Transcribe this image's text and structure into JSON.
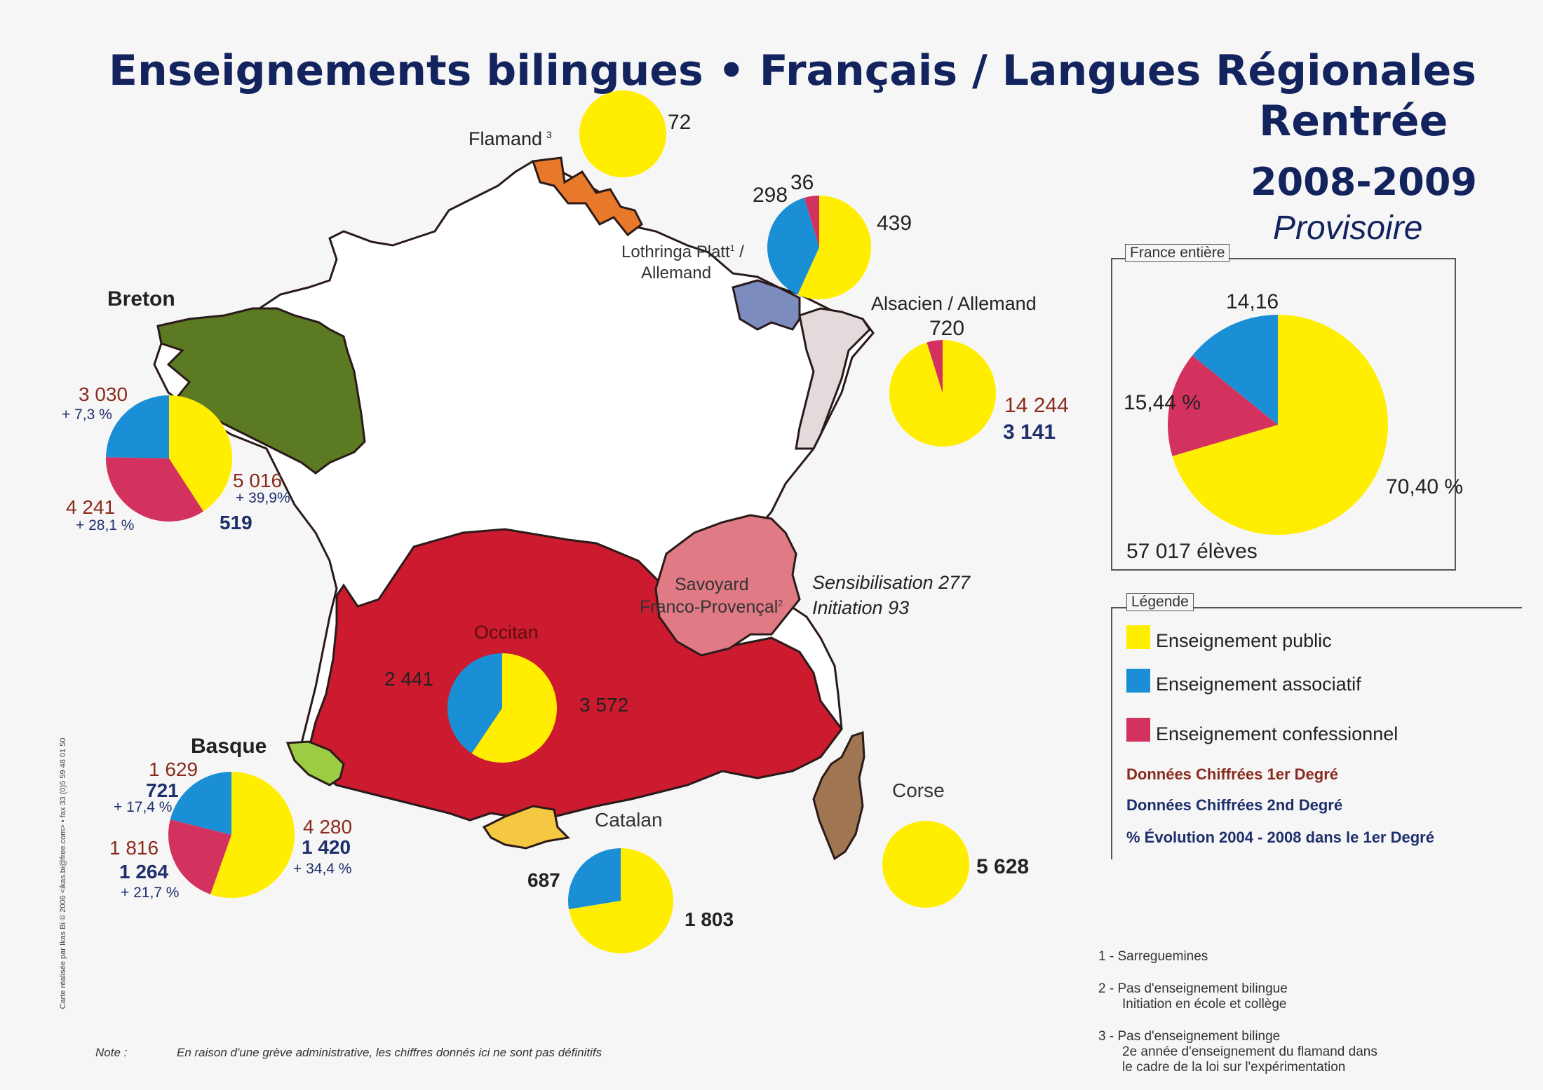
{
  "title": {
    "line1": "Enseignements bilingues • Français / Langues Régionales",
    "line2": "Rentrée",
    "year": "2008-2009",
    "status": "Provisoire"
  },
  "colors": {
    "public": "#ffee00",
    "associatif": "#1a8fd6",
    "confessionnel": "#d4325e",
    "breton_region": "#5c7a22",
    "occitan_region": "#cc1a2e",
    "savoyard_region": "#e07a84",
    "flamand_region": "#e8782a",
    "lothringen_region": "#7c8cbf",
    "alsace_region": "#e2dadb",
    "basque_region": "#9ccc44",
    "catalan_region": "#f5c842",
    "corse_region": "#a07552",
    "first_degree_text": "#8a2a1c",
    "second_degree_text": "#1e2f6b",
    "title_text": "#13235e"
  },
  "regions": {
    "flamand": {
      "name": "Flamand",
      "note": "3",
      "pie_public": "72"
    },
    "lothringen": {
      "name_line1": "Lothringa Platt",
      "note": "1",
      "name_line1_suffix": " /",
      "name_line2": "Allemand",
      "pie_public": "439",
      "pie_associatif": "298",
      "pie_confessionnel": "36"
    },
    "alsace": {
      "name": "Alsacien / Allemand",
      "pie_top": "720",
      "first_degree": "14 244",
      "second_degree": "3 141"
    },
    "breton": {
      "name": "Breton",
      "assoc_value": "3 030",
      "assoc_evol": "+ 7,3 %",
      "public_value": "5 016",
      "public_evol": "+ 39,9%",
      "public_second": "519",
      "confes_value": "4 241",
      "confes_evol": "+ 28,1 %"
    },
    "savoyard": {
      "name_line1": "Savoyard",
      "name_line2": "Franco-Provençal",
      "note": "2",
      "sensibilisation": "Sensibilisation 277",
      "initiation": "Initiation 93"
    },
    "occitan": {
      "name": "Occitan",
      "assoc_value": "2 441",
      "public_value": "3 572"
    },
    "basque": {
      "name": "Basque",
      "assoc_value": "1 629",
      "assoc_second": "721",
      "assoc_evol": "+ 17,4 %",
      "public_value": "4 280",
      "public_second": "1 420",
      "public_evol": "+ 34,4 %",
      "confes_value": "1 816",
      "confes_second": "1 264",
      "confes_evol": "+ 21,7 %"
    },
    "catalan": {
      "name": "Catalan",
      "assoc_value": "687",
      "public_value": "1 803"
    },
    "corse": {
      "name": "Corse",
      "public_value": "5 628"
    }
  },
  "france_entiere": {
    "label": "France entière",
    "assoc_pct": "14,16",
    "confes_pct": "15,44 %",
    "public_pct": "70,40 %",
    "total": "57 017 élèves"
  },
  "legend": {
    "label": "Légende",
    "public": "Enseignement public",
    "associatif": "Enseignement associatif",
    "confessionnel": "Enseignement confessionnel",
    "first_degree": "Données Chiffrées 1er Degré",
    "second_degree": "Données Chiffrées 2nd Degré",
    "evolution": "% Évolution 2004 - 2008 dans le 1er Degré"
  },
  "footnotes": {
    "n1": "1 - Sarreguemines",
    "n2_line1": "2 - Pas d'enseignement bilingue",
    "n2_line2": "Initiation en école et collège",
    "n3_line1": "3 - Pas d'enseignement bilinge",
    "n3_line2": "2e année d'enseignement du flamand dans",
    "n3_line3": "le cadre de la loi sur l'expérimentation"
  },
  "note": {
    "label": "Note :",
    "text": "En raison d'une grève administrative, les chiffres donnés ici ne sont pas définitifs"
  },
  "credit": "Carte réalisée par Ikas Bi © 2006 <ikas.bi@free.com> • fax 33 (0)5 59 48 01 50",
  "chart_data": [
    {
      "type": "pie",
      "title": "France entière",
      "categories": [
        "Enseignement public",
        "Enseignement associatif",
        "Enseignement confessionnel"
      ],
      "values": [
        70.4,
        14.16,
        15.44
      ]
    },
    {
      "type": "pie",
      "title": "Breton",
      "categories": [
        "Enseignement public",
        "Enseignement associatif",
        "Enseignement confessionnel"
      ],
      "values": [
        5016,
        3030,
        4241
      ]
    },
    {
      "type": "pie",
      "title": "Occitan",
      "categories": [
        "Enseignement public",
        "Enseignement associatif"
      ],
      "values": [
        3572,
        2441
      ]
    },
    {
      "type": "pie",
      "title": "Basque",
      "categories": [
        "Enseignement public",
        "Enseignement associatif",
        "Enseignement confessionnel"
      ],
      "values": [
        4280,
        1629,
        1816
      ]
    },
    {
      "type": "pie",
      "title": "Catalan",
      "categories": [
        "Enseignement public",
        "Enseignement associatif"
      ],
      "values": [
        1803,
        687
      ]
    },
    {
      "type": "pie",
      "title": "Corse",
      "categories": [
        "Enseignement public"
      ],
      "values": [
        5628
      ]
    },
    {
      "type": "pie",
      "title": "Flamand",
      "categories": [
        "Enseignement public"
      ],
      "values": [
        72
      ]
    },
    {
      "type": "pie",
      "title": "Lothringa Platt / Allemand",
      "categories": [
        "Enseignement public",
        "Enseignement associatif",
        "Enseignement confessionnel"
      ],
      "values": [
        439,
        298,
        36
      ]
    },
    {
      "type": "pie",
      "title": "Alsacien / Allemand",
      "categories": [
        "Enseignement public",
        "Enseignement confessionnel"
      ],
      "values": [
        14244,
        720
      ]
    }
  ]
}
